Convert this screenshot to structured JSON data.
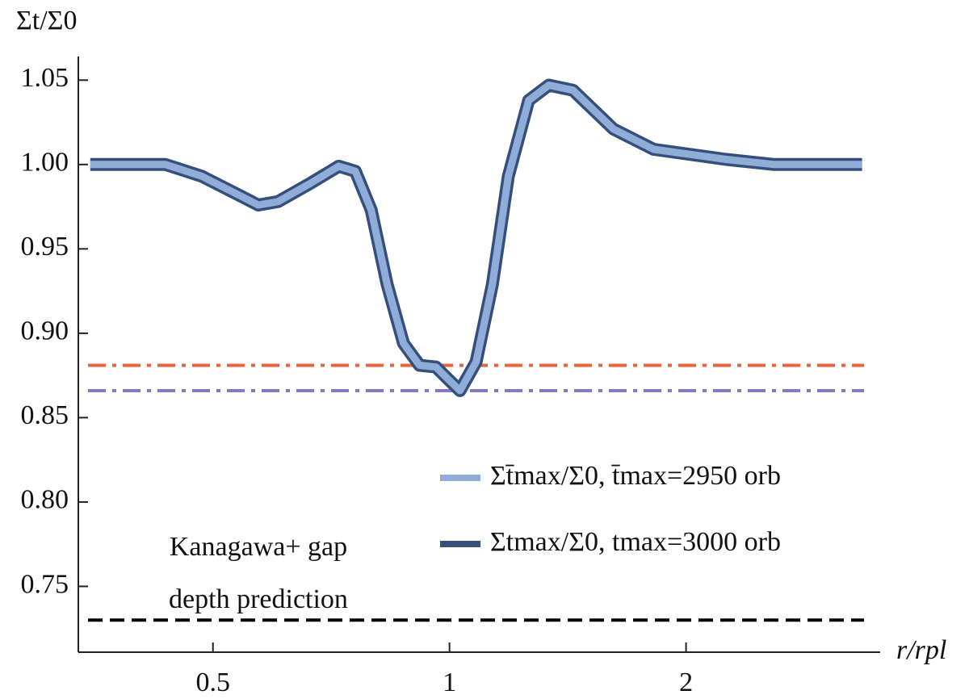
{
  "chart_data": {
    "type": "line",
    "y_label": "Σt/Σ0",
    "x_label": "r/rpl",
    "x": [
      0.349,
      0.435,
      0.484,
      0.544,
      0.571,
      0.605,
      0.666,
      0.723,
      0.759,
      0.795,
      0.833,
      0.874,
      0.916,
      0.961,
      0.995,
      1.031,
      1.081,
      1.134,
      1.188,
      1.261,
      1.338,
      1.436,
      1.617,
      1.819,
      2.25,
      2.59,
      3.35
    ],
    "series": [
      {
        "name": "Σt̄max/Σ0, t̄max=2950 orb",
        "color": "#8fadd8",
        "values": [
          1.0,
          1.0,
          0.993,
          0.981,
          0.976,
          0.978,
          0.989,
          0.999,
          0.996,
          0.973,
          0.929,
          0.894,
          0.881,
          0.88,
          0.873,
          0.866,
          0.883,
          0.929,
          0.993,
          1.038,
          1.047,
          1.044,
          1.021,
          1.009,
          1.003,
          1.0,
          1.0
        ]
      },
      {
        "name": "Σtmax/Σ0, tmax=3000 orb",
        "color": "#34507a",
        "values": [
          1.0,
          1.0,
          0.993,
          0.981,
          0.976,
          0.978,
          0.989,
          0.999,
          0.996,
          0.973,
          0.929,
          0.894,
          0.881,
          0.88,
          0.873,
          0.866,
          0.883,
          0.929,
          0.993,
          1.038,
          1.047,
          1.044,
          1.021,
          1.009,
          1.003,
          1.0,
          1.0
        ]
      }
    ],
    "hlines": [
      {
        "value": 0.881,
        "color": "#e8643c",
        "style": "dashdot"
      },
      {
        "value": 0.866,
        "color": "#8878c0",
        "style": "dashdot"
      },
      {
        "value": 0.73,
        "color": "#000000",
        "style": "dashed"
      }
    ],
    "annotation": [
      "Kanagawa+ gap",
      "depth prediction"
    ],
    "xscale": "log",
    "xlim": [
      0.337,
      3.45
    ],
    "xticks": [
      0.5,
      1,
      2
    ],
    "ylim": [
      0.711,
      1.064
    ],
    "yticks": [
      {
        "value": 0.75,
        "label": "0.75"
      },
      {
        "value": 0.8,
        "label": "0.80"
      },
      {
        "value": 0.85,
        "label": "0.85"
      },
      {
        "value": 0.9,
        "label": "0.90"
      },
      {
        "value": 0.95,
        "label": "0.95"
      },
      {
        "value": 1.0,
        "label": "1.00"
      },
      {
        "value": 1.05,
        "label": "1.05"
      }
    ],
    "legend": "lower right"
  }
}
